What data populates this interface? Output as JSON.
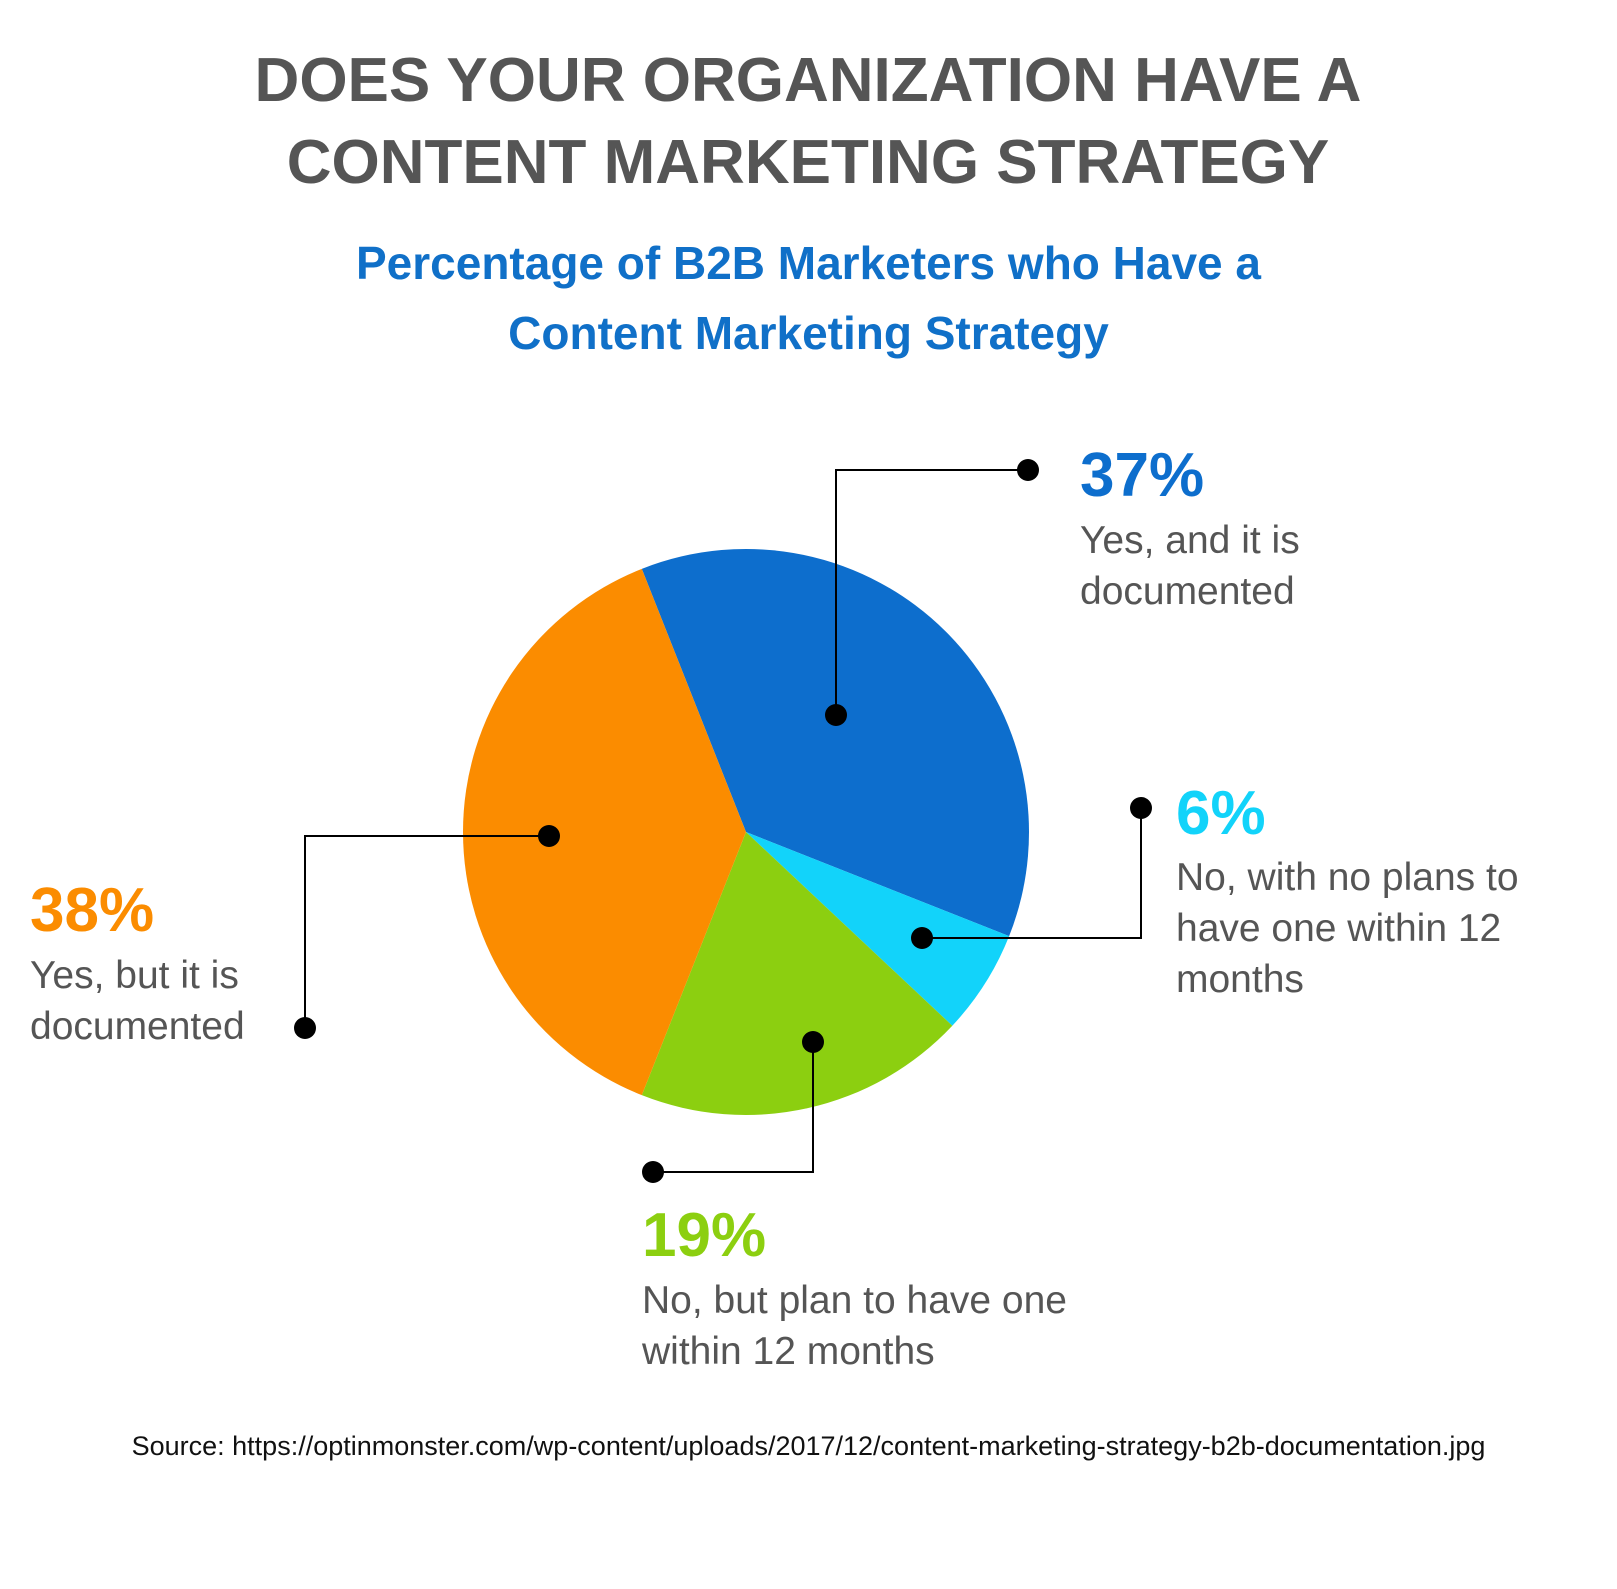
{
  "chart_data": {
    "type": "pie",
    "title": "DOES YOUR ORGANIZATION HAVE A CONTENT MARKETING STRATEGY",
    "subtitle": "Percentage of B2B Marketers who Have a Content Marketing Strategy",
    "categories": [
      "Yes, and it is documented",
      "No, with no plans to have one within 12 months",
      "No, but plan to have one within 12 months",
      "Yes, but it is documented"
    ],
    "values": [
      37,
      6,
      19,
      38
    ],
    "value_labels": [
      "37%",
      "6%",
      "19%",
      "38%"
    ],
    "colors": [
      "#0d6ecd",
      "#12d3fa",
      "#8ccf10",
      "#fb8c00"
    ],
    "source": "Source: https://optinmonster.com/wp-content/uploads/2017/12/content-marketing-strategy-b2b-documentation.jpg"
  }
}
